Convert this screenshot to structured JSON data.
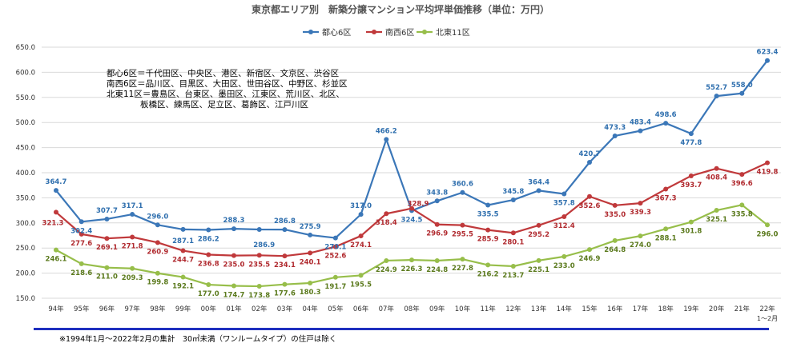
{
  "chart_data": {
    "type": "line",
    "title": "東京都エリア別　新築分譲マンション平均坪単価推移（単位：万円）",
    "categories": [
      "94年",
      "95年",
      "96年",
      "97年",
      "98年",
      "99年",
      "00年",
      "01年",
      "02年",
      "03年",
      "04年",
      "05年",
      "06年",
      "07年",
      "08年",
      "09年",
      "10年",
      "11年",
      "12年",
      "13年",
      "14年",
      "15年",
      "16年",
      "17年",
      "18年",
      "19年",
      "20年",
      "21年",
      "22年"
    ],
    "last_category_sub": "1～2月",
    "ylim": [
      150,
      650
    ],
    "yticks": [
      "150.0",
      "200.0",
      "250.0",
      "300.0",
      "350.0",
      "400.0",
      "450.0",
      "500.0",
      "550.0",
      "600.0",
      "650.0"
    ],
    "series": [
      {
        "name": "都心6区",
        "color": "#3b77b8",
        "values": [
          364.7,
          302.4,
          307.7,
          317.1,
          296.0,
          287.1,
          286.2,
          288.3,
          286.9,
          286.8,
          275.9,
          270.1,
          317.0,
          466.2,
          324.5,
          343.8,
          360.6,
          335.5,
          345.8,
          364.4,
          357.8,
          420.7,
          473.3,
          483.4,
          498.6,
          477.8,
          552.7,
          558.0,
          623.4
        ]
      },
      {
        "name": "南西6区",
        "color": "#c0393b",
        "values": [
          321.3,
          277.6,
          269.1,
          271.8,
          260.9,
          244.7,
          236.8,
          235.0,
          235.5,
          234.1,
          240.1,
          252.6,
          274.1,
          318.4,
          328.9,
          296.9,
          295.5,
          285.9,
          280.1,
          295.2,
          312.4,
          352.6,
          335.0,
          339.3,
          367.3,
          393.7,
          408.4,
          396.6,
          419.8
        ]
      },
      {
        "name": "北東11区",
        "color": "#97be4a",
        "values": [
          246.1,
          218.6,
          211.0,
          209.3,
          199.8,
          192.1,
          177.0,
          174.7,
          173.8,
          177.6,
          180.3,
          191.7,
          195.5,
          224.9,
          226.3,
          224.8,
          227.8,
          216.2,
          213.7,
          225.1,
          233.0,
          246.9,
          264.8,
          274.0,
          288.1,
          301.8,
          325.1,
          335.8,
          296.0
        ]
      }
    ],
    "label_colors": {
      "都心6区": "#2f6fae",
      "南西6区": "#b02a2f",
      "北東11区": "#5b7a1d"
    }
  },
  "notes": [
    "都心6区＝千代田区、中央区、港区、新宿区、文京区、渋谷区",
    "南西6区＝品川区、目黒区、大田区、世田谷区、中野区、杉並区",
    "北東11区＝豊島区、台東区、墨田区、江東区、荒川区、北区、",
    "　　　　板橋区、練馬区、足立区、葛飾区、江戸川区"
  ],
  "footnote": "※1994年1月～2022年2月の集計　30㎡未満（ワンルームタイプ）の住戸は除く"
}
